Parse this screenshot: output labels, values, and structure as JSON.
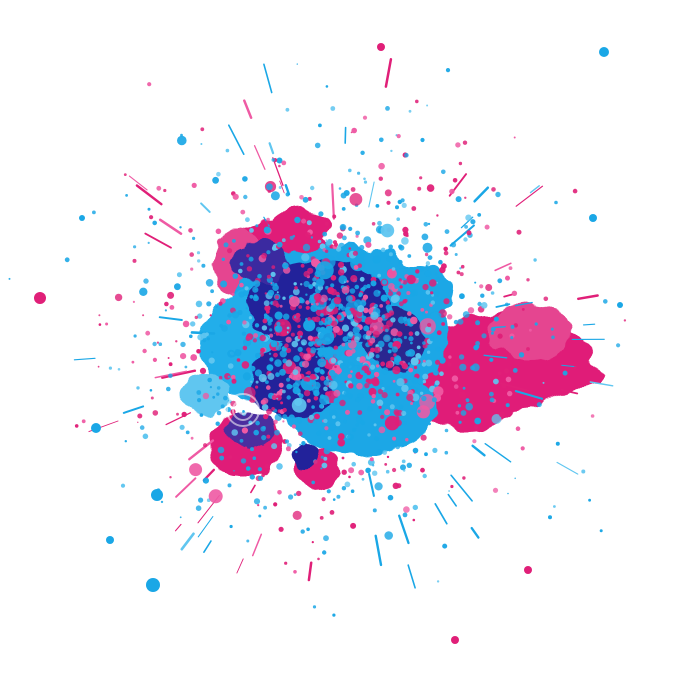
{
  "image": {
    "background_color": "#ffffff",
    "palette": {
      "magenta": "#e01f78",
      "magenta_light": "#ef5aa4",
      "cyan": "#1aa7e6",
      "cyan_light": "#60c6f0",
      "navy": "#24249a",
      "violet": "#4b2d9f"
    },
    "watermark_icon": "swirl-watermark-icon"
  }
}
